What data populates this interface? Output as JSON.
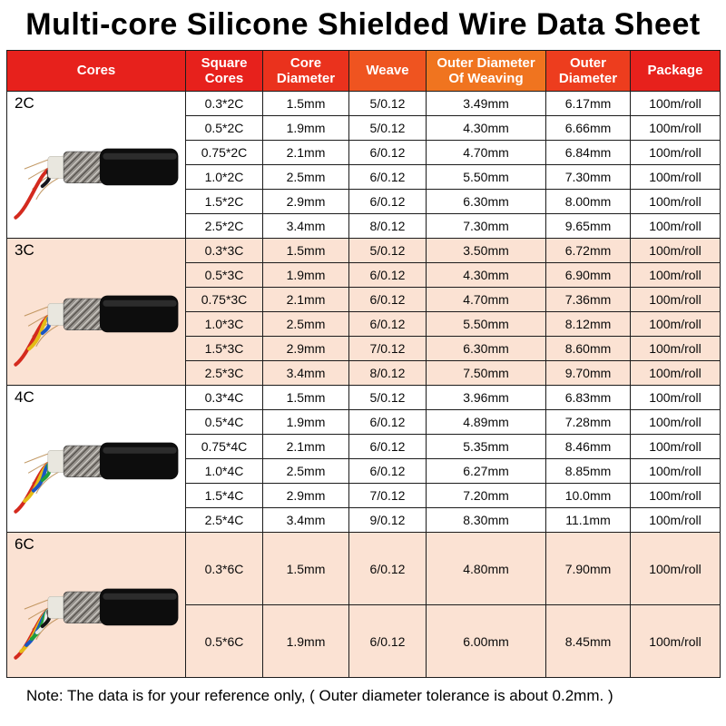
{
  "title": "Multi-core Silicone Shielded Wire Data Sheet",
  "note": "Note:  The data is for your reference only,  ( Outer diameter tolerance is about 0.2mm. )",
  "table": {
    "headers": [
      {
        "label": "Cores",
        "color": "#e7211c"
      },
      {
        "label": "Square Cores",
        "color": "#e7211c"
      },
      {
        "label": "Core Diameter",
        "color": "#ea321d"
      },
      {
        "label": "Weave",
        "color": "#ef5420"
      },
      {
        "label": "Outer Diameter Of Weaving",
        "color": "#f0741f"
      },
      {
        "label": "Outer Diameter",
        "color": "#ed3d1e"
      },
      {
        "label": "Package",
        "color": "#e7211c"
      }
    ],
    "column_keys": [
      "square-cores",
      "core-diameter",
      "weave",
      "outer-diameter-of-weaving",
      "outer-diameter",
      "package"
    ],
    "groups": [
      {
        "label": "2C",
        "tinted": false,
        "wire_colors": [
          "#d42a1e",
          "#16161c"
        ],
        "rows": [
          [
            "0.3*2C",
            "1.5mm",
            "5/0.12",
            "3.49mm",
            "6.17mm",
            "100m/roll"
          ],
          [
            "0.5*2C",
            "1.9mm",
            "5/0.12",
            "4.30mm",
            "6.66mm",
            "100m/roll"
          ],
          [
            "0.75*2C",
            "2.1mm",
            "6/0.12",
            "4.70mm",
            "6.84mm",
            "100m/roll"
          ],
          [
            "1.0*2C",
            "2.5mm",
            "6/0.12",
            "5.50mm",
            "7.30mm",
            "100m/roll"
          ],
          [
            "1.5*2C",
            "2.9mm",
            "6/0.12",
            "6.30mm",
            "8.00mm",
            "100m/roll"
          ],
          [
            "2.5*2C",
            "3.4mm",
            "8/0.12",
            "7.30mm",
            "9.65mm",
            "100m/roll"
          ]
        ]
      },
      {
        "label": "3C",
        "tinted": true,
        "wire_colors": [
          "#d42a1e",
          "#e4bc16",
          "#1a56c4"
        ],
        "rows": [
          [
            "0.3*3C",
            "1.5mm",
            "5/0.12",
            "3.50mm",
            "6.72mm",
            "100m/roll"
          ],
          [
            "0.5*3C",
            "1.9mm",
            "6/0.12",
            "4.30mm",
            "6.90mm",
            "100m/roll"
          ],
          [
            "0.75*3C",
            "2.1mm",
            "6/0.12",
            "4.70mm",
            "7.36mm",
            "100m/roll"
          ],
          [
            "1.0*3C",
            "2.5mm",
            "6/0.12",
            "5.50mm",
            "8.12mm",
            "100m/roll"
          ],
          [
            "1.5*3C",
            "2.9mm",
            "7/0.12",
            "6.30mm",
            "8.60mm",
            "100m/roll"
          ],
          [
            "2.5*3C",
            "3.4mm",
            "8/0.12",
            "7.50mm",
            "9.70mm",
            "100m/roll"
          ]
        ]
      },
      {
        "label": "4C",
        "tinted": false,
        "wire_colors": [
          "#d42a1e",
          "#e4bc16",
          "#1a56c4",
          "#1f9e3a"
        ],
        "rows": [
          [
            "0.3*4C",
            "1.5mm",
            "5/0.12",
            "3.96mm",
            "6.83mm",
            "100m/roll"
          ],
          [
            "0.5*4C",
            "1.9mm",
            "6/0.12",
            "4.89mm",
            "7.28mm",
            "100m/roll"
          ],
          [
            "0.75*4C",
            "2.1mm",
            "6/0.12",
            "5.35mm",
            "8.46mm",
            "100m/roll"
          ],
          [
            "1.0*4C",
            "2.5mm",
            "6/0.12",
            "6.27mm",
            "8.85mm",
            "100m/roll"
          ],
          [
            "1.5*4C",
            "2.9mm",
            "7/0.12",
            "7.20mm",
            "10.0mm",
            "100m/roll"
          ],
          [
            "2.5*4C",
            "3.4mm",
            "9/0.12",
            "8.30mm",
            "11.1mm",
            "100m/roll"
          ]
        ]
      },
      {
        "label": "6C",
        "tinted": true,
        "wire_colors": [
          "#d42a1e",
          "#e4bc16",
          "#1a56c4",
          "#1f9e3a",
          "#e9e9e9",
          "#141414"
        ],
        "rows": [
          [
            "0.3*6C",
            "1.5mm",
            "6/0.12",
            "4.80mm",
            "7.90mm",
            "100m/roll"
          ],
          [
            "0.5*6C",
            "1.9mm",
            "6/0.12",
            "6.00mm",
            "8.45mm",
            "100m/roll"
          ]
        ]
      }
    ]
  }
}
